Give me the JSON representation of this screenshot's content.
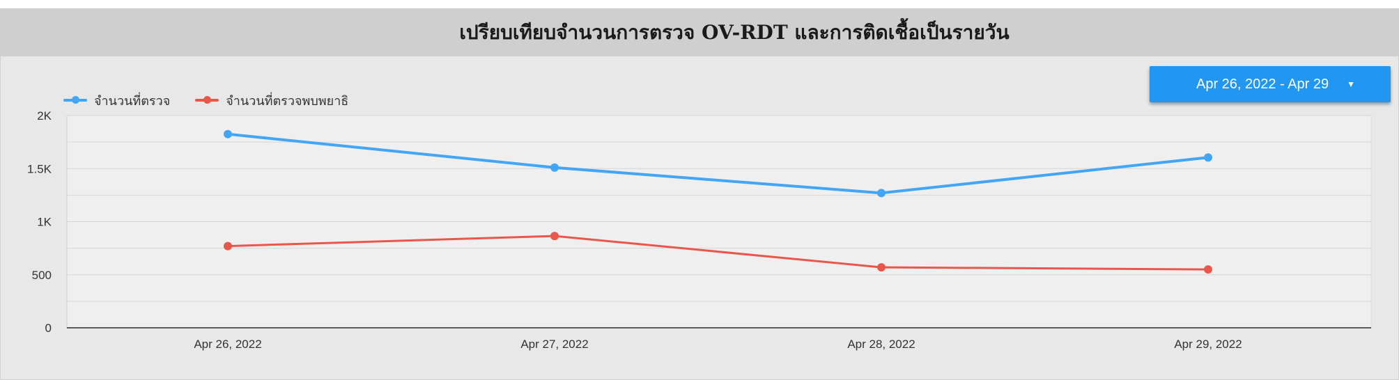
{
  "page": {
    "title": "เปรียบเทียบจำนวนการตรวจ OV-RDT และการติดเชื้อเป็นรายวัน"
  },
  "controls": {
    "date_range_label": "Apr 26, 2022 - Apr 29",
    "caret_glyph": "▼"
  },
  "colors": {
    "series_tested": "#42a5f5",
    "series_positive": "#e8574a",
    "title_bar": "#cfcfcf",
    "button": "#2196f3"
  },
  "chart_data": {
    "type": "line",
    "title": "เปรียบเทียบจำนวนการตรวจ OV-RDT และการติดเชื้อเป็นรายวัน",
    "categories": [
      "Apr 26, 2022",
      "Apr 27, 2022",
      "Apr 28, 2022",
      "Apr 29, 2022"
    ],
    "series": [
      {
        "name": "จำนวนที่ตรวจ",
        "values": [
          1825,
          1510,
          1270,
          1605
        ]
      },
      {
        "name": "จำนวนที่ตรวจพบพยาธิ",
        "values": [
          770,
          865,
          570,
          550
        ]
      }
    ],
    "ylim": [
      0,
      2000
    ],
    "y_ticks": [
      0,
      500,
      1000,
      1500,
      2000
    ],
    "y_tick_labels": [
      "0",
      "500",
      "1K",
      "1.5K",
      "2K"
    ],
    "grid": true,
    "legend_position": "top-left"
  }
}
